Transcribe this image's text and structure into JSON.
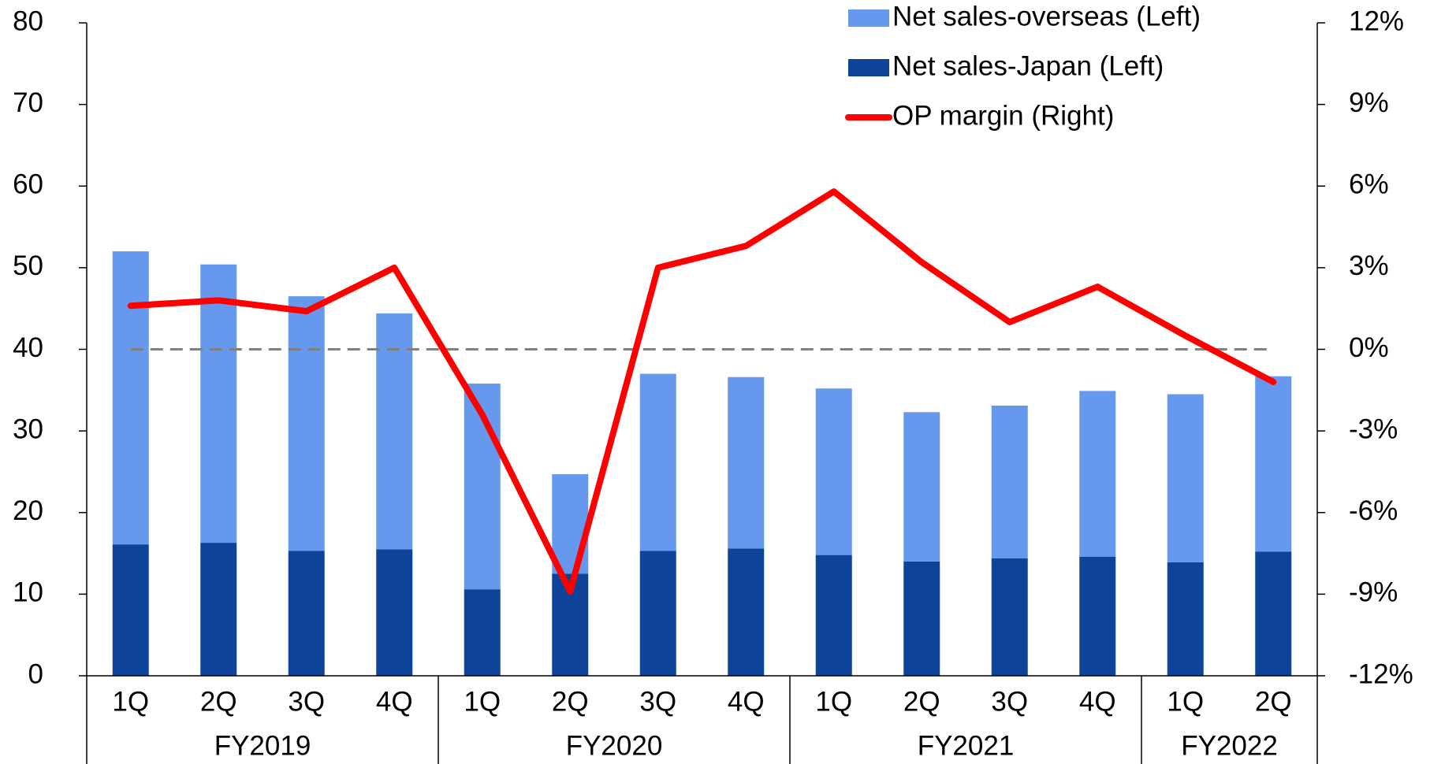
{
  "chart_data": {
    "type": "bar-line",
    "categories": [
      "1Q",
      "2Q",
      "3Q",
      "4Q",
      "1Q",
      "2Q",
      "3Q",
      "4Q",
      "1Q",
      "2Q",
      "3Q",
      "4Q",
      "1Q",
      "2Q"
    ],
    "groups": [
      {
        "label": "FY2019",
        "span": 4
      },
      {
        "label": "FY2020",
        "span": 4
      },
      {
        "label": "FY2021",
        "span": 4
      },
      {
        "label": "FY2022",
        "span": 2
      }
    ],
    "series": [
      {
        "name": "Net sales-overseas (Left)",
        "type": "bar",
        "color": "#6699ee",
        "values": [
          35.9,
          34.1,
          31.2,
          28.9,
          25.2,
          12.2,
          21.7,
          21.0,
          20.4,
          18.3,
          18.7,
          20.3,
          20.6,
          21.5
        ]
      },
      {
        "name": "Net sales-Japan (Left)",
        "type": "bar",
        "color": "#0d4499",
        "values": [
          16.1,
          16.3,
          15.3,
          15.5,
          10.6,
          12.5,
          15.3,
          15.6,
          14.8,
          14.0,
          14.4,
          14.6,
          13.9,
          15.2
        ]
      },
      {
        "name": "OP margin (Right)",
        "type": "line",
        "axis": "y2",
        "color": "#ff0000",
        "values": [
          1.6,
          1.8,
          1.4,
          3.0,
          -2.4,
          -8.9,
          3.0,
          3.8,
          5.8,
          3.2,
          1.0,
          2.3,
          0.5,
          -1.2
        ]
      }
    ],
    "ylim": [
      0,
      80
    ],
    "yticks": [
      0,
      10,
      20,
      30,
      40,
      50,
      60,
      70,
      80
    ],
    "y2lim": [
      -12,
      12
    ],
    "y2ticks": [
      {
        "value": -12,
        "label": "-12%"
      },
      {
        "value": -9,
        "label": "-9%"
      },
      {
        "value": -6,
        "label": "-6%"
      },
      {
        "value": -3,
        "label": "-3%"
      },
      {
        "value": 0,
        "label": "0%"
      },
      {
        "value": 3,
        "label": "3%"
      },
      {
        "value": 6,
        "label": "6%"
      },
      {
        "value": 9,
        "label": "9%"
      },
      {
        "value": 12,
        "label": "12%"
      }
    ],
    "y2_reference_line": 0,
    "legend": "top-right"
  }
}
